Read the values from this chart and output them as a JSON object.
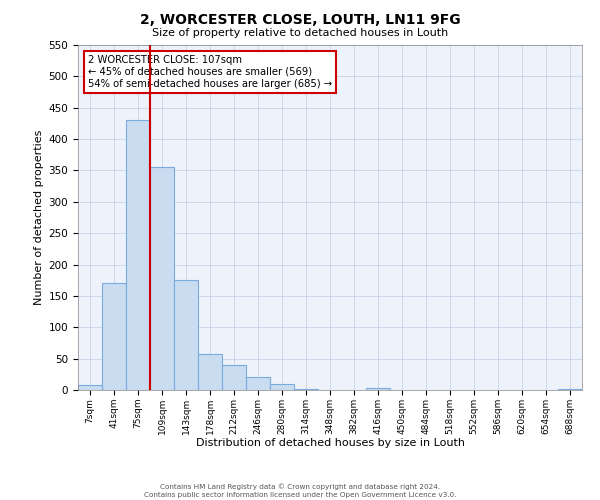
{
  "title": "2, WORCESTER CLOSE, LOUTH, LN11 9FG",
  "subtitle": "Size of property relative to detached houses in Louth",
  "xlabel": "Distribution of detached houses by size in Louth",
  "ylabel": "Number of detached properties",
  "bar_labels": [
    "7sqm",
    "41sqm",
    "75sqm",
    "109sqm",
    "143sqm",
    "178sqm",
    "212sqm",
    "246sqm",
    "280sqm",
    "314sqm",
    "348sqm",
    "382sqm",
    "416sqm",
    "450sqm",
    "484sqm",
    "518sqm",
    "552sqm",
    "586sqm",
    "620sqm",
    "654sqm",
    "688sqm"
  ],
  "bar_values": [
    8,
    170,
    430,
    355,
    175,
    57,
    40,
    20,
    10,
    2,
    0,
    0,
    3,
    0,
    0,
    0,
    0,
    0,
    0,
    0,
    2
  ],
  "bar_color": "#c9dcf0",
  "bar_edge_color": "#7aabe0",
  "vline_x_index": 3,
  "vline_color": "#cc0000",
  "annotation_title": "2 WORCESTER CLOSE: 107sqm",
  "annotation_line1": "← 45% of detached houses are smaller (569)",
  "annotation_line2": "54% of semi-detached houses are larger (685) →",
  "annotation_box_color": "#cc0000",
  "ylim": [
    0,
    550
  ],
  "yticks": [
    0,
    50,
    100,
    150,
    200,
    250,
    300,
    350,
    400,
    450,
    500,
    550
  ],
  "footer_line1": "Contains HM Land Registry data © Crown copyright and database right 2024.",
  "footer_line2": "Contains public sector information licensed under the Open Government Licence v3.0.",
  "bg_color": "#eef2fa",
  "grid_color": "#c0cee6"
}
